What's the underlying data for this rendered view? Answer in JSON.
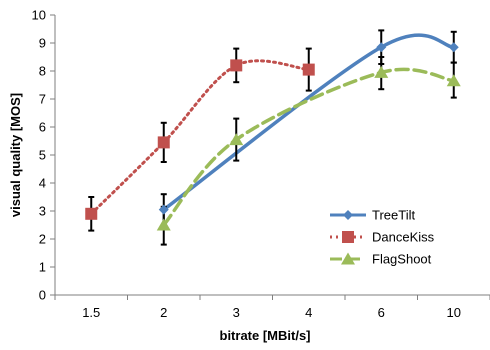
{
  "chart_data": {
    "type": "line",
    "xlabel": "bitrate [MBit/s]",
    "ylabel": "visual quality [MOS]",
    "categories": [
      "1.5",
      "2",
      "3",
      "4",
      "6",
      "10"
    ],
    "ylim": [
      0,
      10
    ],
    "yticks": [
      0,
      1,
      2,
      3,
      4,
      5,
      6,
      7,
      8,
      9,
      10
    ],
    "grid": false,
    "legend_position": "right",
    "series": [
      {
        "name": "TreeTilt",
        "color": "#4f81bd",
        "marker": "diamond",
        "line_style": "solid",
        "values": [
          null,
          3.05,
          null,
          null,
          8.85,
          8.85
        ],
        "error_low": [
          null,
          2.45,
          null,
          null,
          8.25,
          8.3
        ],
        "error_high": [
          null,
          3.6,
          null,
          null,
          9.45,
          9.4
        ]
      },
      {
        "name": "DanceKiss",
        "color": "#c0504d",
        "marker": "square",
        "line_style": "dotted",
        "values": [
          2.9,
          5.45,
          8.2,
          8.05,
          null,
          null
        ],
        "error_low": [
          2.3,
          4.75,
          7.6,
          7.3,
          null,
          null
        ],
        "error_high": [
          3.5,
          6.15,
          8.8,
          8.8,
          null,
          null
        ]
      },
      {
        "name": "FlagShoot",
        "color": "#9bbb59",
        "marker": "triangle",
        "line_style": "dashed",
        "values": [
          null,
          2.5,
          5.55,
          null,
          7.95,
          7.65
        ],
        "error_low": [
          null,
          1.8,
          4.8,
          null,
          7.35,
          7.05
        ],
        "error_high": [
          null,
          3.15,
          6.3,
          null,
          8.5,
          8.3
        ]
      }
    ]
  }
}
